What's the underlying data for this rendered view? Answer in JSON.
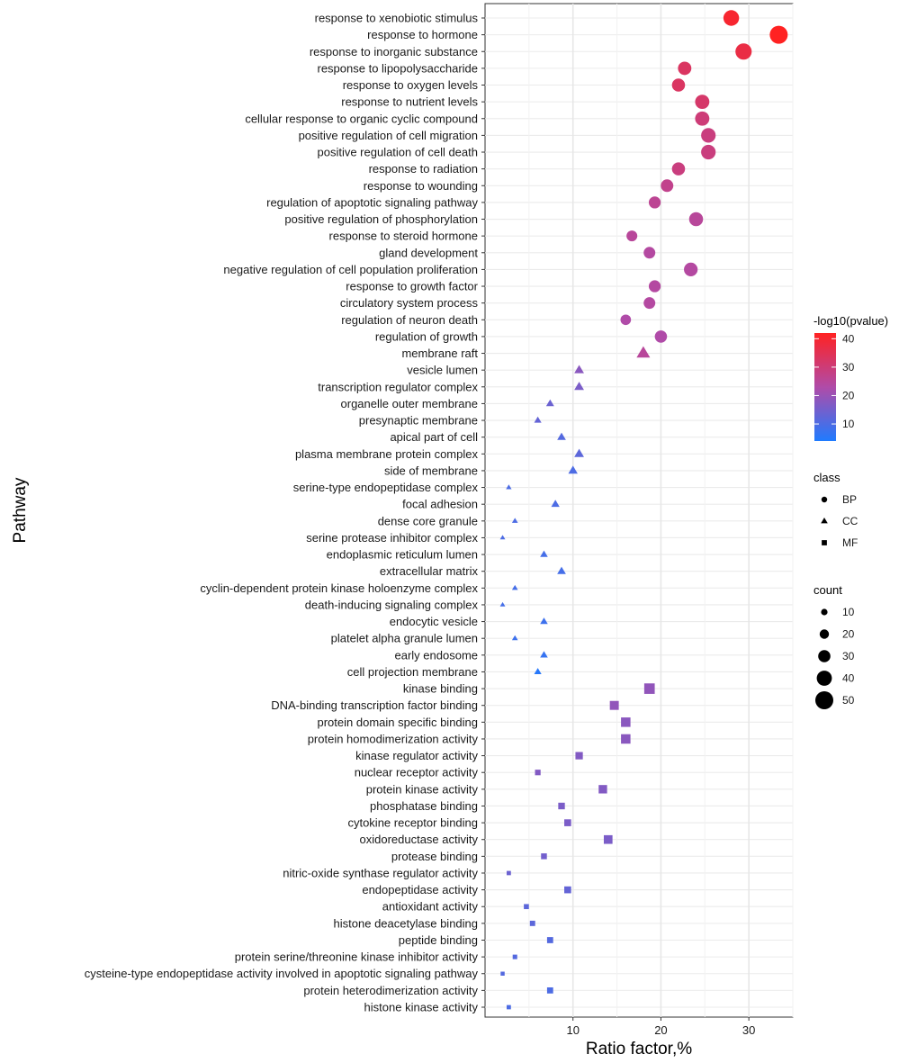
{
  "chart_data": {
    "type": "scatter",
    "title": "",
    "xlabel": "Ratio factor,%",
    "ylabel": "Pathway",
    "xlim": [
      0,
      35
    ],
    "xticks": [
      10,
      20,
      30
    ],
    "grid": true,
    "legend_placement": "right",
    "categories": [
      "response to xenobiotic stimulus",
      "response to hormone",
      "response to inorganic substance",
      "response to lipopolysaccharide",
      "response to oxygen levels",
      "response to nutrient levels",
      "cellular response to organic cyclic compound",
      "positive regulation of cell migration",
      "positive regulation of cell death",
      "response to radiation",
      "response to wounding",
      "regulation of apoptotic signaling pathway",
      "positive regulation of phosphorylation",
      "response to steroid hormone",
      "gland development",
      "negative regulation of cell population proliferation",
      "response to growth factor",
      "circulatory system process",
      "regulation of neuron death",
      "regulation of growth",
      "membrane raft",
      "vesicle lumen",
      "transcription regulator complex",
      "organelle outer membrane",
      "presynaptic membrane",
      "apical part of cell",
      "plasma membrane protein complex",
      "side of membrane",
      "serine-type endopeptidase complex",
      "focal adhesion",
      "dense core granule",
      "serine protease inhibitor complex",
      "endoplasmic reticulum lumen",
      "extracellular matrix",
      "cyclin-dependent protein kinase holoenzyme complex",
      "death-inducing signaling complex",
      "endocytic vesicle",
      "platelet alpha granule lumen",
      "early endosome",
      "cell projection membrane",
      "kinase binding",
      "DNA-binding transcription factor binding",
      "protein domain specific binding",
      "protein homodimerization activity",
      "kinase regulator activity",
      "nuclear receptor activity",
      "protein kinase activity",
      "phosphatase binding",
      "cytokine receptor binding",
      "oxidoreductase activity",
      "protease binding",
      "nitric-oxide synthase regulator activity",
      "endopeptidase activity",
      "antioxidant activity",
      "histone deacetylase binding",
      "peptide binding",
      "protein serine/threonine kinase inhibitor activity",
      "cysteine-type endopeptidase activity involved in apoptotic signaling pathway",
      "protein heterodimerization activity",
      "histone kinase activity"
    ],
    "x": [
      28.0,
      33.4,
      29.4,
      22.7,
      22.0,
      24.7,
      24.7,
      25.4,
      25.4,
      22.0,
      20.7,
      19.3,
      24.0,
      16.7,
      18.7,
      23.4,
      19.3,
      18.7,
      16.0,
      20.0,
      18.0,
      10.7,
      10.7,
      7.4,
      6.0,
      8.7,
      10.7,
      10.0,
      2.7,
      8.0,
      3.4,
      2.0,
      6.7,
      8.7,
      3.4,
      2.0,
      6.7,
      3.4,
      6.7,
      6.0,
      18.7,
      14.7,
      16.0,
      16.0,
      10.7,
      6.0,
      13.4,
      8.7,
      9.4,
      14.0,
      6.7,
      2.7,
      9.4,
      4.7,
      5.4,
      7.4,
      3.4,
      2.0,
      7.4,
      2.7
    ],
    "class": [
      "BP",
      "BP",
      "BP",
      "BP",
      "BP",
      "BP",
      "BP",
      "BP",
      "BP",
      "BP",
      "BP",
      "BP",
      "BP",
      "BP",
      "BP",
      "BP",
      "BP",
      "BP",
      "BP",
      "BP",
      "CC",
      "CC",
      "CC",
      "CC",
      "CC",
      "CC",
      "CC",
      "CC",
      "CC",
      "CC",
      "CC",
      "CC",
      "CC",
      "CC",
      "CC",
      "CC",
      "CC",
      "CC",
      "CC",
      "CC",
      "MF",
      "MF",
      "MF",
      "MF",
      "MF",
      "MF",
      "MF",
      "MF",
      "MF",
      "MF",
      "MF",
      "MF",
      "MF",
      "MF",
      "MF",
      "MF",
      "MF",
      "MF",
      "MF",
      "MF"
    ],
    "count": [
      42,
      50,
      44,
      34,
      33,
      37,
      37,
      38,
      38,
      33,
      31,
      29,
      36,
      25,
      28,
      35,
      29,
      28,
      24,
      30,
      27,
      16,
      16,
      11,
      9,
      13,
      16,
      15,
      4,
      12,
      5,
      3,
      10,
      13,
      5,
      3,
      10,
      5,
      10,
      9,
      28,
      22,
      24,
      24,
      16,
      9,
      20,
      13,
      14,
      21,
      10,
      4,
      14,
      7,
      8,
      11,
      5,
      3,
      11,
      4
    ],
    "neg_log10_pvalue": [
      40,
      42,
      37,
      33,
      33,
      32,
      30,
      29,
      29,
      29,
      27,
      26,
      25,
      25,
      24,
      24,
      24,
      24,
      23,
      23,
      25,
      18,
      16,
      14,
      13,
      11,
      12,
      10,
      10,
      10,
      10,
      10,
      9,
      9,
      9,
      9,
      8,
      8,
      7,
      5,
      19,
      19,
      18,
      18,
      17,
      17,
      17,
      16,
      16,
      16,
      15,
      14,
      13,
      12,
      12,
      11,
      11,
      11,
      10,
      10
    ],
    "color_legend": {
      "title": "-log10(pvalue)",
      "ticks": [
        10,
        20,
        30,
        40
      ],
      "range": [
        4,
        42
      ],
      "low_color": "#1f7bff",
      "mid_color": "#b04ba8",
      "high_color": "#ff2222"
    },
    "shape_legend": {
      "title": "class",
      "items": [
        {
          "label": "BP",
          "shape": "circle"
        },
        {
          "label": "CC",
          "shape": "triangle"
        },
        {
          "label": "MF",
          "shape": "square"
        }
      ]
    },
    "size_legend": {
      "title": "count",
      "values": [
        10,
        20,
        30,
        40,
        50
      ]
    }
  }
}
